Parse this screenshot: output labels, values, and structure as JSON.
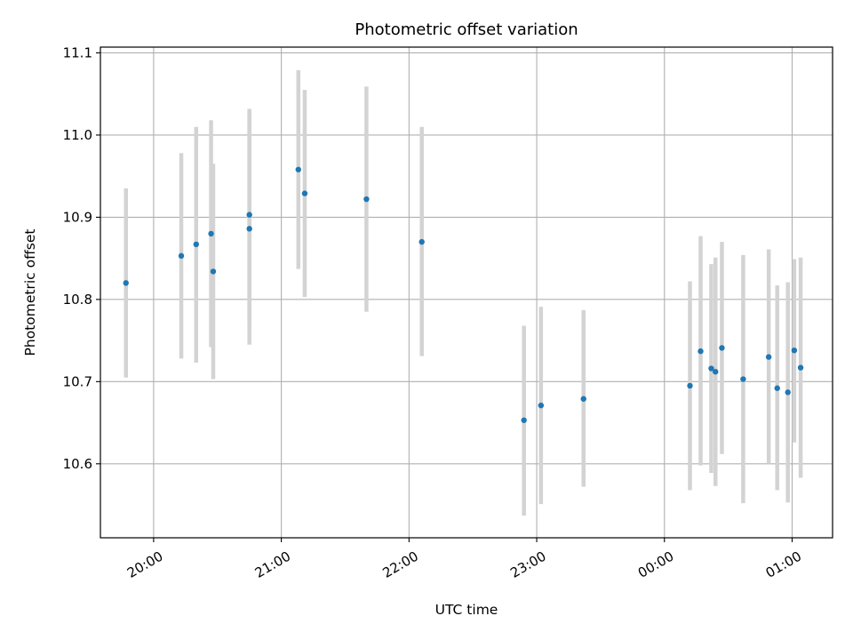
{
  "chart_data": {
    "type": "scatter",
    "title": "Photometric offset variation",
    "xlabel": "UTC time",
    "ylabel": "Photometric offset",
    "x_axis_type": "time",
    "xlim": [
      "19:34",
      "01:18"
    ],
    "ylim": [
      10.51,
      11.107
    ],
    "grid": true,
    "errorbar_color": "#d3d3d3",
    "marker_color": "#1f77b4",
    "x_ticks": [
      {
        "value": "19:59",
        "label": "20:00"
      },
      {
        "value": "20:59",
        "label": "21:00"
      },
      {
        "value": "21:59",
        "label": "22:00"
      },
      {
        "value": "22:59",
        "label": "23:00"
      },
      {
        "value": "23:59",
        "label": "00:00"
      },
      {
        "value": "00:59",
        "label": "01:00"
      }
    ],
    "y_ticks": [
      {
        "value": 10.6,
        "label": "10.6"
      },
      {
        "value": 10.7,
        "label": "10.7"
      },
      {
        "value": 10.8,
        "label": "10.8"
      },
      {
        "value": 10.9,
        "label": "10.9"
      },
      {
        "value": 11.0,
        "label": "11.0"
      },
      {
        "value": 11.1,
        "label": "11.1"
      }
    ],
    "points": [
      {
        "x": "19:46",
        "y": 10.82,
        "ylow": 10.705,
        "yhigh": 10.935
      },
      {
        "x": "20:12",
        "y": 10.853,
        "ylow": 10.728,
        "yhigh": 10.978
      },
      {
        "x": "20:19",
        "y": 10.867,
        "ylow": 10.723,
        "yhigh": 11.01
      },
      {
        "x": "20:26",
        "y": 10.88,
        "ylow": 10.742,
        "yhigh": 11.018
      },
      {
        "x": "20:27",
        "y": 10.834,
        "ylow": 10.703,
        "yhigh": 10.965
      },
      {
        "x": "20:44",
        "y": 10.903,
        "ylow": 10.773,
        "yhigh": 11.032
      },
      {
        "x": "20:44",
        "y": 10.886,
        "ylow": 10.745,
        "yhigh": 11.026
      },
      {
        "x": "21:07",
        "y": 10.958,
        "ylow": 10.837,
        "yhigh": 11.079
      },
      {
        "x": "21:10",
        "y": 10.929,
        "ylow": 10.803,
        "yhigh": 11.055
      },
      {
        "x": "21:39",
        "y": 10.922,
        "ylow": 10.785,
        "yhigh": 11.059
      },
      {
        "x": "22:05",
        "y": 10.87,
        "ylow": 10.731,
        "yhigh": 11.01
      },
      {
        "x": "22:53",
        "y": 10.653,
        "ylow": 10.537,
        "yhigh": 10.768
      },
      {
        "x": "23:01",
        "y": 10.671,
        "ylow": 10.551,
        "yhigh": 10.791
      },
      {
        "x": "23:21",
        "y": 10.679,
        "ylow": 10.572,
        "yhigh": 10.787
      },
      {
        "x": "00:11",
        "y": 10.695,
        "ylow": 10.568,
        "yhigh": 10.822
      },
      {
        "x": "00:16",
        "y": 10.737,
        "ylow": 10.598,
        "yhigh": 10.877
      },
      {
        "x": "00:21",
        "y": 10.716,
        "ylow": 10.589,
        "yhigh": 10.843
      },
      {
        "x": "00:23",
        "y": 10.712,
        "ylow": 10.573,
        "yhigh": 10.851
      },
      {
        "x": "00:26",
        "y": 10.741,
        "ylow": 10.612,
        "yhigh": 10.87
      },
      {
        "x": "00:36",
        "y": 10.703,
        "ylow": 10.552,
        "yhigh": 10.854
      },
      {
        "x": "00:48",
        "y": 10.73,
        "ylow": 10.6,
        "yhigh": 10.861
      },
      {
        "x": "00:52",
        "y": 10.692,
        "ylow": 10.568,
        "yhigh": 10.817
      },
      {
        "x": "00:57",
        "y": 10.687,
        "ylow": 10.553,
        "yhigh": 10.821
      },
      {
        "x": "01:00",
        "y": 10.738,
        "ylow": 10.626,
        "yhigh": 10.849
      },
      {
        "x": "01:03",
        "y": 10.717,
        "ylow": 10.583,
        "yhigh": 10.851
      }
    ]
  }
}
